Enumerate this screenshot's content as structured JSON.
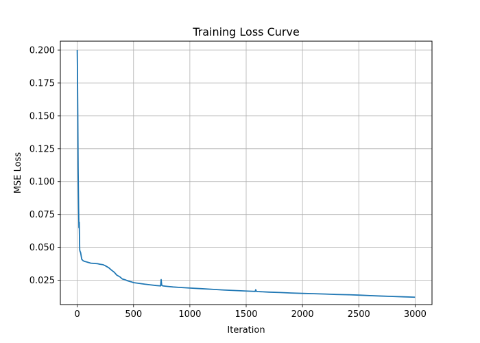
{
  "chart_data": {
    "type": "line",
    "title": "Training Loss Curve",
    "xlabel": "Iteration",
    "ylabel": "MSE Loss",
    "xlim": [
      -150,
      3150
    ],
    "ylim": [
      0.0065,
      0.2068
    ],
    "xticks": [
      0,
      500,
      1000,
      1500,
      2000,
      2500,
      3000
    ],
    "xtick_labels": [
      "0",
      "500",
      "1000",
      "1500",
      "2000",
      "2500",
      "3000"
    ],
    "yticks": [
      0.025,
      0.05,
      0.075,
      0.1,
      0.125,
      0.15,
      0.175,
      0.2
    ],
    "ytick_labels": [
      "0.025",
      "0.050",
      "0.075",
      "0.100",
      "0.125",
      "0.150",
      "0.175",
      "0.200"
    ],
    "grid": true,
    "line_color": "#1f77b4",
    "series": [
      {
        "x": [
          0,
          2,
          5,
          8,
          12,
          15,
          18,
          20,
          22,
          25,
          30,
          40,
          50,
          60,
          80,
          100,
          120,
          150,
          180,
          200,
          230,
          250,
          280,
          300,
          330,
          350,
          380,
          400,
          430,
          450,
          480,
          500,
          550,
          600,
          650,
          700,
          730,
          740,
          745,
          750,
          760,
          800,
          850,
          900,
          1000,
          1100,
          1200,
          1300,
          1400,
          1500,
          1580,
          1585,
          1590,
          1600,
          1700,
          1800,
          1900,
          2000,
          2100,
          2200,
          2300,
          2400,
          2500,
          2600,
          2700,
          2800,
          2900,
          3000
        ],
        "y": [
          0.2,
          0.185,
          0.15,
          0.11,
          0.08,
          0.065,
          0.069,
          0.058,
          0.048,
          0.047,
          0.046,
          0.041,
          0.04,
          0.0395,
          0.039,
          0.0385,
          0.038,
          0.0378,
          0.0376,
          0.0372,
          0.0368,
          0.036,
          0.0345,
          0.033,
          0.031,
          0.029,
          0.0275,
          0.026,
          0.0252,
          0.0245,
          0.0238,
          0.0232,
          0.0226,
          0.022,
          0.0215,
          0.021,
          0.0208,
          0.0207,
          0.0255,
          0.0212,
          0.0207,
          0.0203,
          0.0199,
          0.0196,
          0.0191,
          0.0186,
          0.0181,
          0.0176,
          0.0172,
          0.0168,
          0.0165,
          0.0178,
          0.0166,
          0.0164,
          0.016,
          0.0157,
          0.0153,
          0.015,
          0.0148,
          0.0145,
          0.0142,
          0.014,
          0.0137,
          0.0133,
          0.013,
          0.0127,
          0.0124,
          0.0121
        ]
      }
    ]
  }
}
